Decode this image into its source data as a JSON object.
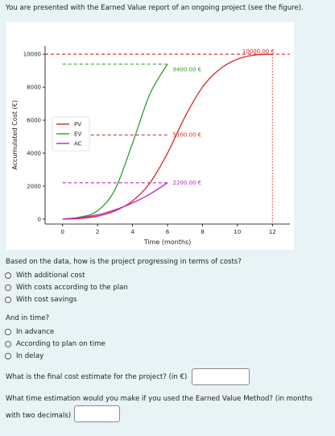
{
  "intro": "You are presented with the Earned Value report of an ongoing project (see the figure).",
  "chart_data": {
    "type": "line",
    "xlabel": "Time (months)",
    "ylabel": "Accumulated Cost (€)",
    "xlim": [
      -1,
      13
    ],
    "ylim": [
      -300,
      10500
    ],
    "x_ticks": [
      "0",
      "2",
      "4",
      "6",
      "8",
      "10",
      "12"
    ],
    "y_ticks": [
      "0",
      "2000",
      "4000",
      "6000",
      "8000",
      "10000"
    ],
    "legend_position": "center-left",
    "grid": false,
    "series": [
      {
        "name": "PV",
        "color": "#d62728",
        "points": [
          [
            0,
            0
          ],
          [
            1,
            40
          ],
          [
            2,
            180
          ],
          [
            3,
            500
          ],
          [
            4,
            1100
          ],
          [
            5,
            2200
          ],
          [
            6,
            4000
          ],
          [
            7,
            6200
          ],
          [
            8,
            8000
          ],
          [
            9,
            9100
          ],
          [
            10,
            9700
          ],
          [
            11,
            9950
          ],
          [
            12,
            10000
          ]
        ]
      },
      {
        "name": "EV",
        "color": "#2ca02c",
        "points": [
          [
            0,
            0
          ],
          [
            1,
            120
          ],
          [
            2,
            500
          ],
          [
            3,
            1800
          ],
          [
            4,
            4600
          ],
          [
            5,
            7600
          ],
          [
            6,
            9400
          ]
        ]
      },
      {
        "name": "AC",
        "color": "#c020c0",
        "points": [
          [
            0,
            0
          ],
          [
            1,
            90
          ],
          [
            2,
            260
          ],
          [
            3,
            560
          ],
          [
            4,
            980
          ],
          [
            5,
            1520
          ],
          [
            6,
            2200
          ]
        ]
      }
    ],
    "reference_lines": [
      {
        "value": 10000,
        "color": "#d62728",
        "label": "10000.00 €"
      },
      {
        "value": 9400,
        "color": "#2ca02c",
        "label": "9400.00 €"
      },
      {
        "value": 5100,
        "color": "#d62728",
        "label": "5100.00 €"
      },
      {
        "value": 2200,
        "color": "#c020c0",
        "label": "2200.00 €"
      }
    ],
    "vertical_line": {
      "x": 12,
      "color": "#d62728"
    }
  },
  "q1": {
    "question": "Based on the data, how is the project progressing in terms of costs?",
    "options": [
      "With additional cost",
      "With costs according to the plan",
      "With cost savings"
    ]
  },
  "q2": {
    "question": "And in time?",
    "options": [
      "In advance",
      "According to plan on time",
      "In delay"
    ]
  },
  "q3": {
    "question": "What is the final cost estimate for the project? (in €)",
    "value": ""
  },
  "q4": {
    "question_line1": "What time estimation would you make if you used the Earned Value Method? (in months",
    "question_line2": "with two decimals)",
    "value": ""
  }
}
